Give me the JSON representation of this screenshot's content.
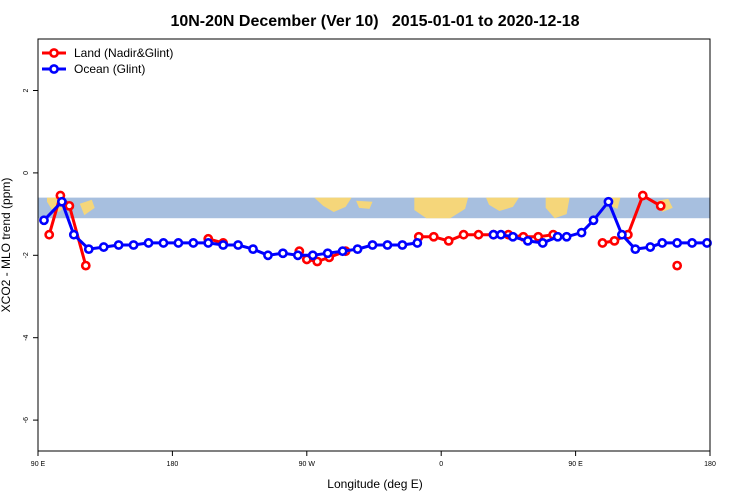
{
  "chart_data": {
    "type": "line",
    "title": "10N-20N December (Ver 10)   2015-01-01 to 2020-12-18",
    "xlabel": "Longitude (deg E)",
    "ylabel": "XCO2 - MLO trend (ppm)",
    "xlim": [
      90,
      540
    ],
    "ylim": [
      -6.0,
      2.0
    ],
    "x_ticks": [
      {
        "value": 90,
        "label": "90 E"
      },
      {
        "value": 180,
        "label": "180"
      },
      {
        "value": 270,
        "label": "90 W"
      },
      {
        "value": 360,
        "label": "0"
      },
      {
        "value": 450,
        "label": "90 E"
      },
      {
        "value": 540,
        "label": "180"
      }
    ],
    "y_ticks": [
      {
        "value": 2,
        "label": "2"
      },
      {
        "value": 0,
        "label": "0"
      },
      {
        "value": -2,
        "label": "-2"
      },
      {
        "value": -4,
        "label": "-4"
      },
      {
        "value": -6,
        "label": "-6"
      }
    ],
    "legend_position": "top-left",
    "map_band": {
      "ymin": -1.1,
      "ymax": -0.6,
      "ocean_color": "#a7bfdf",
      "land_color": "#f5d67a"
    },
    "series": [
      {
        "name": "Land (Nadir&Glint)",
        "color": "#ff0000",
        "segments": [
          {
            "x": [
              97.5,
              105,
              111,
              122
            ],
            "y": [
              -1.5,
              -0.55,
              -0.8,
              -2.25
            ]
          },
          {
            "x": [
              204,
              214
            ],
            "y": [
              -1.6,
              -1.7
            ]
          },
          {
            "x": [
              265,
              270,
              277,
              285,
              296
            ],
            "y": [
              -1.9,
              -2.1,
              -2.15,
              -2.05,
              -1.9
            ]
          },
          {
            "x": [
              345,
              355,
              365,
              375,
              385,
              395,
              405,
              415,
              425,
              435
            ],
            "y": [
              -1.55,
              -1.55,
              -1.65,
              -1.5,
              -1.5,
              -1.5,
              -1.5,
              -1.55,
              -1.55,
              -1.5
            ]
          },
          {
            "x": [
              468,
              476,
              485,
              495,
              507
            ],
            "y": [
              -1.7,
              -1.65,
              -1.5,
              -0.55,
              -0.8
            ]
          },
          {
            "x": [
              518
            ],
            "y": [
              -2.25
            ]
          }
        ]
      },
      {
        "name": "Ocean (Glint)",
        "color": "#0000ff",
        "segments": [
          {
            "x": [
              94,
              106,
              114,
              124,
              134,
              144,
              154,
              164,
              174,
              184,
              194,
              204,
              214,
              224,
              234,
              244,
              254,
              264,
              274,
              284,
              294,
              304,
              314,
              324,
              334,
              344
            ],
            "y": [
              -1.15,
              -0.7,
              -1.5,
              -1.85,
              -1.8,
              -1.75,
              -1.75,
              -1.7,
              -1.7,
              -1.7,
              -1.7,
              -1.7,
              -1.75,
              -1.75,
              -1.85,
              -2.0,
              -1.95,
              -2.0,
              -2.0,
              -1.95,
              -1.9,
              -1.85,
              -1.75,
              -1.75,
              -1.75,
              -1.7
            ]
          },
          {
            "x": [
              395,
              400,
              408,
              418,
              428,
              438,
              444,
              454,
              462,
              472,
              481,
              490,
              500,
              508,
              518,
              528,
              538
            ],
            "y": [
              -1.5,
              -1.5,
              -1.55,
              -1.65,
              -1.7,
              -1.55,
              -1.55,
              -1.45,
              -1.15,
              -0.7,
              -1.5,
              -1.85,
              -1.8,
              -1.7,
              -1.7,
              -1.7,
              -1.7
            ]
          }
        ]
      }
    ]
  }
}
